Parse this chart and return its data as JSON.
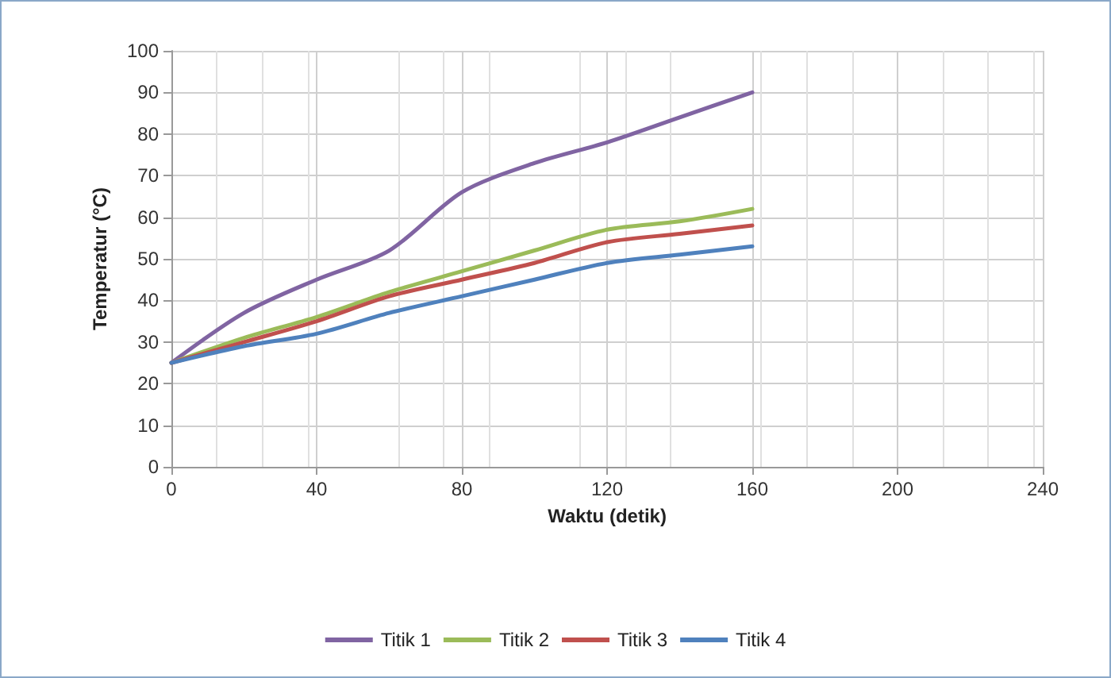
{
  "chart_data": {
    "type": "line",
    "xlabel": "Waktu (detik)",
    "ylabel": "Temperatur (°C)",
    "x": [
      0,
      20,
      40,
      60,
      80,
      100,
      120,
      140,
      160
    ],
    "series": [
      {
        "name": "Titik 1",
        "color": "#8064a2",
        "values": [
          25,
          37,
          45,
          52,
          66,
          73,
          78,
          84,
          90
        ]
      },
      {
        "name": "Titik 2",
        "color": "#9bbb59",
        "values": [
          25,
          31,
          36,
          42,
          47,
          52,
          57,
          59,
          62
        ]
      },
      {
        "name": "Titik 3",
        "color": "#c0504d",
        "values": [
          25,
          30,
          35,
          41,
          45,
          49,
          54,
          56,
          58
        ]
      },
      {
        "name": "Titik 4",
        "color": "#4f81bd",
        "values": [
          25,
          29,
          32,
          37,
          41,
          45,
          49,
          51,
          53
        ]
      }
    ],
    "xlim": [
      0,
      240
    ],
    "xticks": [
      0,
      40,
      80,
      120,
      160,
      200,
      240
    ],
    "ylim": [
      0,
      100
    ],
    "yticks": [
      0,
      10,
      20,
      30,
      40,
      50,
      60,
      70,
      80,
      90,
      100
    ],
    "grid": true,
    "legend": "bottom",
    "marker": "none",
    "line_style": "solid"
  }
}
